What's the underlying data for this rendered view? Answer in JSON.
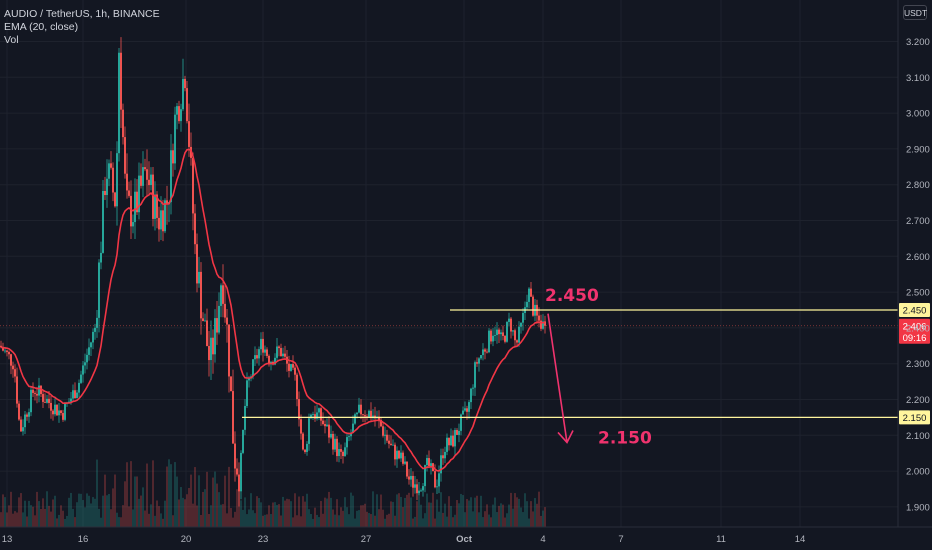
{
  "legend": {
    "symbol": "AUDIO / TetherUS, 1h, BINANCE",
    "ema": "EMA (20, close)",
    "vol": "Vol"
  },
  "axis_unit": "USDT",
  "price_badge": {
    "price": "2.406",
    "countdown": "09:16"
  },
  "colors": {
    "background": "#131722",
    "up": "#26a69a",
    "down": "#ef5350",
    "ema": "#f23645",
    "level": "#fff59d",
    "annotation": "#f0336e"
  },
  "chart_data": {
    "type": "candlestick",
    "x_ticks": [
      "13",
      "16",
      "20",
      "23",
      "27",
      "Oct",
      "4",
      "7",
      "11",
      "14"
    ],
    "y_ticks": [
      "3.200",
      "3.100",
      "3.000",
      "2.900",
      "2.800",
      "2.700",
      "2.600",
      "2.500",
      "2.400",
      "2.300",
      "2.200",
      "2.100",
      "2.000",
      "1.900"
    ],
    "ylim": [
      1.83,
      3.29
    ],
    "hlines": [
      {
        "label": "2.450",
        "value": 2.45
      },
      {
        "label": "2.150",
        "value": 2.15
      }
    ],
    "annotations": [
      {
        "text": "2.450",
        "value": 2.45
      },
      {
        "text": "2.150",
        "value": 2.15
      }
    ],
    "arrow": {
      "from": 2.44,
      "to": 2.08
    },
    "last_price": 2.406,
    "price_path": [
      [
        0,
        2.35
      ],
      [
        14,
        2.3
      ],
      [
        20,
        2.11
      ],
      [
        34,
        2.23
      ],
      [
        46,
        2.2
      ],
      [
        62,
        2.16
      ],
      [
        78,
        2.24
      ],
      [
        95,
        2.4
      ],
      [
        106,
        2.85
      ],
      [
        116,
        2.75
      ],
      [
        119,
        3.18
      ],
      [
        126,
        2.74
      ],
      [
        134,
        2.72
      ],
      [
        146,
        2.84
      ],
      [
        158,
        2.7
      ],
      [
        168,
        2.76
      ],
      [
        175,
        2.98
      ],
      [
        185,
        3.12
      ],
      [
        190,
        2.88
      ],
      [
        195,
        2.62
      ],
      [
        202,
        2.45
      ],
      [
        210,
        2.3
      ],
      [
        216,
        2.4
      ],
      [
        222,
        2.56
      ],
      [
        228,
        2.36
      ],
      [
        234,
        2.05
      ],
      [
        240,
        1.99
      ],
      [
        246,
        2.22
      ],
      [
        254,
        2.3
      ],
      [
        262,
        2.36
      ],
      [
        270,
        2.31
      ],
      [
        280,
        2.34
      ],
      [
        288,
        2.29
      ],
      [
        296,
        2.25
      ],
      [
        304,
        2.02
      ],
      [
        310,
        2.17
      ],
      [
        320,
        2.15
      ],
      [
        332,
        2.09
      ],
      [
        342,
        2.03
      ],
      [
        350,
        2.1
      ],
      [
        360,
        2.17
      ],
      [
        372,
        2.16
      ],
      [
        380,
        2.13
      ],
      [
        392,
        2.06
      ],
      [
        402,
        2.03
      ],
      [
        410,
        1.97
      ],
      [
        420,
        1.96
      ],
      [
        428,
        2.02
      ],
      [
        436,
        1.96
      ],
      [
        444,
        2.07
      ],
      [
        452,
        2.08
      ],
      [
        460,
        2.13
      ],
      [
        468,
        2.17
      ],
      [
        476,
        2.3
      ],
      [
        486,
        2.35
      ],
      [
        494,
        2.4
      ],
      [
        502,
        2.36
      ],
      [
        510,
        2.42
      ],
      [
        516,
        2.35
      ],
      [
        522,
        2.41
      ],
      [
        528,
        2.51
      ],
      [
        532,
        2.46
      ],
      [
        538,
        2.42
      ],
      [
        544,
        2.406
      ]
    ]
  }
}
